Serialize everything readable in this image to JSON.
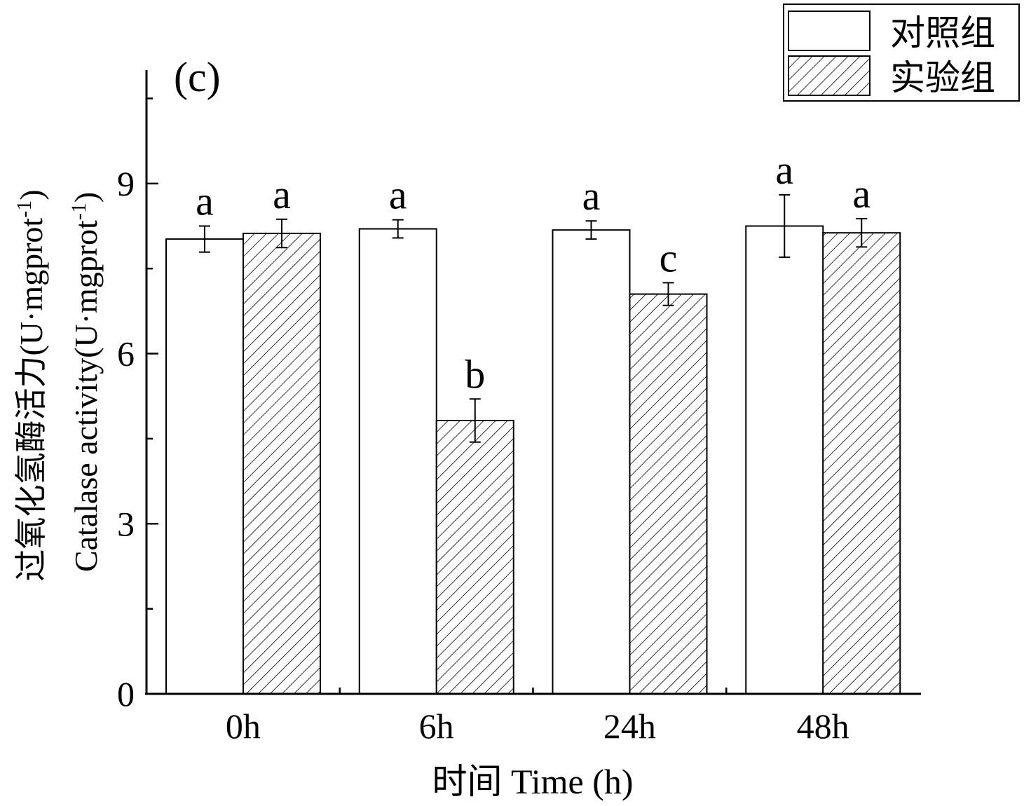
{
  "chart_data": {
    "type": "bar",
    "panel_label": "(c)",
    "categories": [
      "0h",
      "6h",
      "24h",
      "48h"
    ],
    "series": [
      {
        "name": "对照组",
        "pattern": "none",
        "values": [
          8.02,
          8.2,
          8.18,
          8.25
        ],
        "errors": [
          0.23,
          0.16,
          0.16,
          0.55
        ],
        "letters": [
          "a",
          "a",
          "a",
          "a"
        ]
      },
      {
        "name": "实验组",
        "pattern": "hatch",
        "values": [
          8.12,
          4.82,
          7.05,
          8.13
        ],
        "errors": [
          0.25,
          0.38,
          0.2,
          0.25
        ],
        "letters": [
          "a",
          "b",
          "c",
          "a"
        ]
      }
    ],
    "xlabel": "时间 Time (h)",
    "ylabel_cn": "过氧化氢酶活力(U·mgprot",
    "ylabel_en": "Catalase activity(U·mgprot",
    "ylabel_superscript": "-1",
    "ylabel_close": ")",
    "ylim": [
      0,
      11
    ],
    "yticks": [
      0,
      3,
      6,
      9
    ],
    "legend_position": "top-right",
    "colors": {
      "axis": "#000000",
      "bar_fill": "#ffffff",
      "hatch": "#000000"
    }
  }
}
